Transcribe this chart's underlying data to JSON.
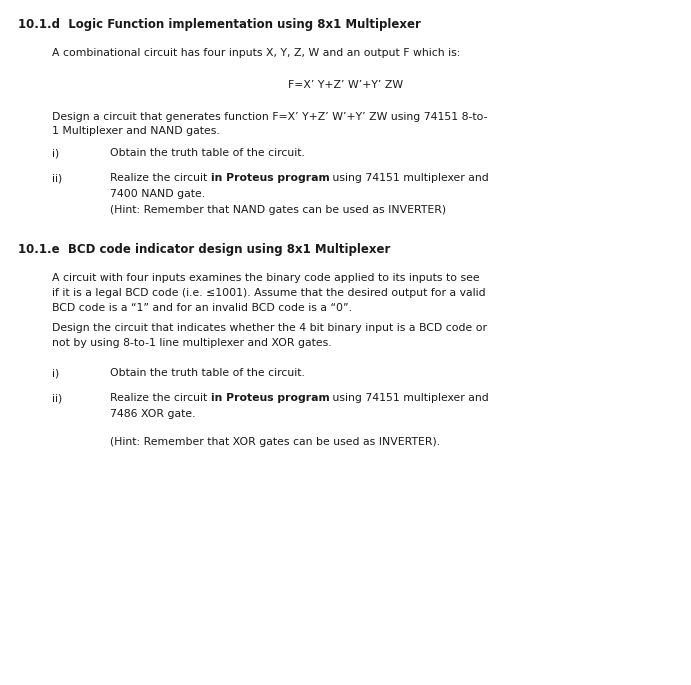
{
  "bg_color": "#ffffff",
  "figsize": [
    6.91,
    6.85
  ],
  "dpi": 100,
  "heading1": "10.1.d  Logic Function implementation using 8x1 Multiplexer",
  "para1": "A combinational circuit has four inputs X, Y, Z, W and an output F which is:",
  "formula": "F=X’ Y+Z’ W’+Y’ ZW",
  "para2": "Design a circuit that generates function F=X’ Y+Z’ W’+Y’ ZW using 74151 8-to-\n1 Multiplexer and NAND gates.",
  "item_i_1": "i)",
  "item_i_1_text": "Obtain the truth table of the circuit.",
  "item_ii_1": "ii)",
  "item_ii_1_pre": "Realize the circuit ",
  "item_ii_1_bold": "in Proteus program",
  "item_ii_1_post": " using 74151 multiplexer and",
  "item_ii_1b": "7400 NAND gate.",
  "item_ii_1c": "(Hint: Remember that NAND gates can be used as INVERTER)",
  "heading2": "10.1.e  BCD code indicator design using 8x1 Multiplexer",
  "para3a": "A circuit with four inputs examines the binary code applied to its inputs to see",
  "para3b": "if it is a legal BCD code (i.e. ≤1001). Assume that the desired output for a valid",
  "para3c": "BCD code is a “1” and for an invalid BCD code is a “0”.",
  "para4a": "Design the circuit that indicates whether the 4 bit binary input is a BCD code or",
  "para4b": "not by using 8-to-1 line multiplexer and XOR gates.",
  "item_i_2": "i)",
  "item_i_2_text": "Obtain the truth table of the circuit.",
  "item_ii_2": "ii)",
  "item_ii_2_pre": "Realize the circuit ",
  "item_ii_2_bold": "in Proteus program",
  "item_ii_2_post": " using 74151 multiplexer and",
  "item_ii_2b": "7486 XOR gate.",
  "item_ii_2c": "(Hint: Remember that XOR gates can be used as INVERTER).",
  "font_size_heading": 8.5,
  "font_size_body": 7.8,
  "text_color": "#1a1a1a"
}
